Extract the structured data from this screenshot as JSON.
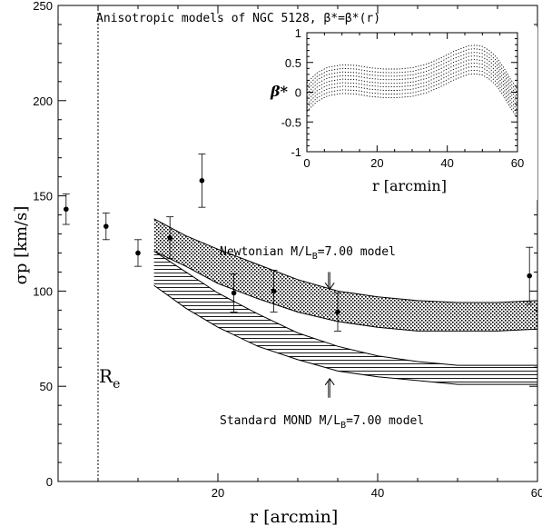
{
  "chart_data": [
    {
      "type": "scatter",
      "title": "Anisotropic models of NGC 5128, β*=β*(r)",
      "xlabel": "r [arcmin]",
      "ylabel": "σp [km/s]",
      "xlim": [
        0,
        60
      ],
      "ylim": [
        0,
        250
      ],
      "x_ticks": [
        "20",
        "40",
        "60"
      ],
      "y_ticks": [
        "0",
        "50",
        "100",
        "150",
        "200",
        "250"
      ],
      "re_marker": {
        "x": 5,
        "label": "R",
        "sub": "e"
      },
      "points": [
        {
          "x": 1,
          "y": 143,
          "err": 8
        },
        {
          "x": 6,
          "y": 134,
          "err": 7
        },
        {
          "x": 10,
          "y": 120,
          "err": 7
        },
        {
          "x": 14,
          "y": 128,
          "err": 11
        },
        {
          "x": 18,
          "y": 158,
          "err": 14
        },
        {
          "x": 22,
          "y": 99,
          "err": 10
        },
        {
          "x": 27,
          "y": 100,
          "err": 11
        },
        {
          "x": 35,
          "y": 89,
          "err": 10
        },
        {
          "x": 59,
          "y": 108,
          "err": 15
        }
      ],
      "bands": [
        {
          "name": "Newtonian M/LB=7.00 model",
          "label_main": "Newtonian M/L",
          "label_sub": "B",
          "label_rest": "=7.00 model",
          "x": [
            12,
            16,
            20,
            25,
            30,
            35,
            40,
            45,
            50,
            55,
            60
          ],
          "upper": [
            138,
            129,
            122,
            114,
            106,
            100,
            97,
            95,
            94,
            94,
            95
          ],
          "lower": [
            121,
            113,
            104,
            96,
            89,
            84,
            81,
            79,
            79,
            79,
            80
          ]
        },
        {
          "name": "Standard MOND M/LB=7.00 model",
          "label_main": "Standard MOND M/L",
          "label_sub": "B",
          "label_rest": "=7.00 model",
          "x": [
            12,
            16,
            20,
            25,
            30,
            35,
            40,
            45,
            50,
            55,
            60
          ],
          "upper": [
            121,
            110,
            99,
            88,
            78,
            71,
            66,
            63,
            61,
            61,
            61
          ],
          "lower": [
            103,
            91,
            81,
            71,
            64,
            58,
            55,
            53,
            51,
            51,
            51
          ]
        }
      ],
      "arrows": [
        {
          "x": 34,
          "y_from": 110,
          "y_to": 101,
          "dir": "down"
        },
        {
          "x": 34,
          "y_from": 44,
          "y_to": 54,
          "dir": "up"
        }
      ]
    },
    {
      "type": "line",
      "xlabel": "r [arcmin]",
      "ylabel": "β*",
      "xlim": [
        0,
        60
      ],
      "ylim": [
        -1,
        1
      ],
      "x_ticks": [
        "0",
        "20",
        "40",
        "60"
      ],
      "y_ticks": [
        "-1",
        "-0.5",
        "0",
        "0.5",
        "1"
      ],
      "style": "dotted",
      "x": [
        0,
        3,
        6,
        10,
        14,
        18,
        22,
        26,
        30,
        34,
        38,
        42,
        46,
        48,
        50,
        52,
        54,
        56,
        58,
        60
      ],
      "base": [
        -0.32,
        -0.15,
        -0.06,
        -0.02,
        -0.03,
        -0.07,
        -0.09,
        -0.09,
        -0.07,
        -0.01,
        0.09,
        0.21,
        0.3,
        0.31,
        0.29,
        0.22,
        0.11,
        -0.06,
        -0.26,
        -0.43
      ],
      "offsets": [
        0,
        0.06,
        0.12,
        0.18,
        0.24,
        0.3,
        0.36,
        0.42,
        0.48
      ]
    }
  ]
}
